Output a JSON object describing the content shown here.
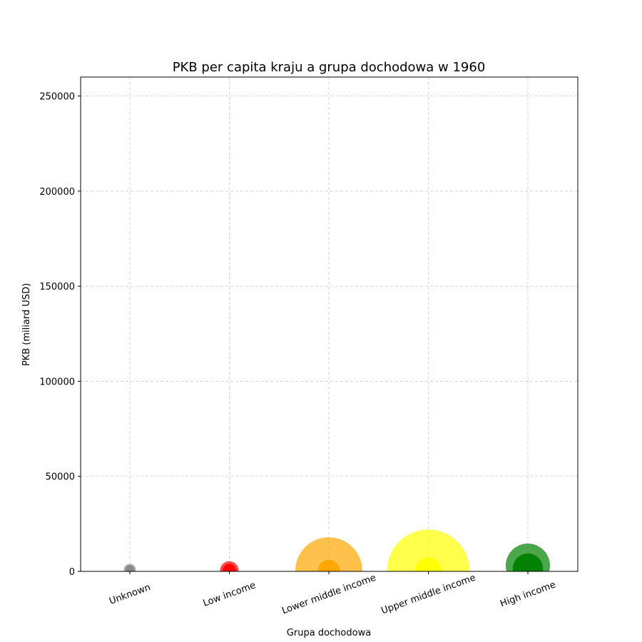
{
  "chart_data": {
    "type": "scatter",
    "title": "PKB per capita kraju a grupa dochodowa w 1960",
    "xlabel": "Grupa dochodowa",
    "ylabel": "PKB (miliard USD)",
    "categories": [
      "Unknown",
      "Low income",
      "Lower middle income",
      "Upper middle income",
      "High income"
    ],
    "ylim": [
      0,
      260000
    ],
    "yticks": [
      0,
      50000,
      100000,
      150000,
      200000,
      250000
    ],
    "grid": true,
    "bubble_note": "each category shows a large translucent bubble and a smaller opaque bubble",
    "series": [
      {
        "role": "outer",
        "points": [
          {
            "category": "Unknown",
            "y": 800,
            "size_rel": 0.18,
            "color": "#808080",
            "opacity": 0.6
          },
          {
            "category": "Low income",
            "y": 400,
            "size_rel": 0.28,
            "color": "#ff0000",
            "opacity": 0.7
          },
          {
            "category": "Lower middle income",
            "y": 300,
            "size_rel": 1.0,
            "color": "#ffa500",
            "opacity": 0.7
          },
          {
            "category": "Upper middle income",
            "y": 300,
            "size_rel": 1.23,
            "color": "#ffff00",
            "opacity": 0.7
          },
          {
            "category": "High income",
            "y": 3000,
            "size_rel": 0.66,
            "color": "#008000",
            "opacity": 0.7
          }
        ]
      },
      {
        "role": "inner",
        "points": [
          {
            "category": "Unknown",
            "y": 800,
            "size_rel": 0.14,
            "color": "#808080",
            "opacity": 0.8
          },
          {
            "category": "Low income",
            "y": 400,
            "size_rel": 0.2,
            "color": "#ff0000",
            "opacity": 0.95
          },
          {
            "category": "Lower middle income",
            "y": 300,
            "size_rel": 0.33,
            "color": "#ffa500",
            "opacity": 0.95
          },
          {
            "category": "Upper middle income",
            "y": 300,
            "size_rel": 0.4,
            "color": "#ffff00",
            "opacity": 0.95
          },
          {
            "category": "High income",
            "y": 1500,
            "size_rel": 0.45,
            "color": "#008000",
            "opacity": 0.95
          }
        ]
      }
    ]
  }
}
